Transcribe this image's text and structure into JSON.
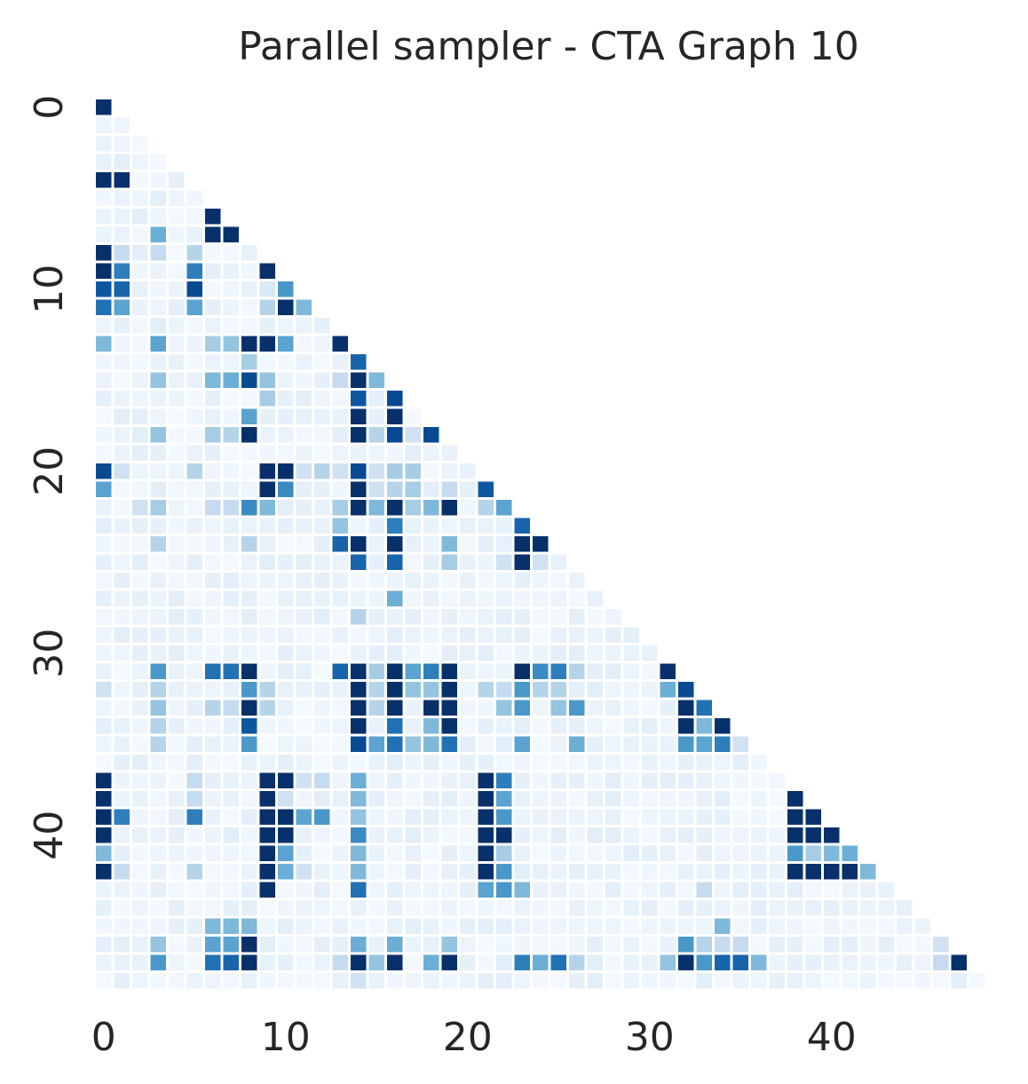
{
  "chart_data": {
    "type": "heatmap",
    "title": "Parallel sampler - CTA Graph 10",
    "xlabel": "",
    "ylabel": "",
    "n": 49,
    "mask": "upper-triangle",
    "colormap": "Blues",
    "value_range": [
      0,
      1
    ],
    "colorbar": false,
    "x_tick_labels": [
      "0",
      "10",
      "20",
      "30",
      "40"
    ],
    "y_tick_labels": [
      "0",
      "10",
      "20",
      "30",
      "40"
    ],
    "cells": [
      [
        0,
        0,
        1.0
      ],
      [
        4,
        0,
        1.0
      ],
      [
        4,
        1,
        1.0
      ],
      [
        6,
        6,
        1.0
      ],
      [
        7,
        3,
        0.5
      ],
      [
        7,
        6,
        1.0
      ],
      [
        7,
        7,
        1.0
      ],
      [
        8,
        0,
        1.0
      ],
      [
        8,
        1,
        0.25
      ],
      [
        8,
        3,
        0.25
      ],
      [
        8,
        5,
        0.3
      ],
      [
        9,
        0,
        1.0
      ],
      [
        9,
        1,
        0.7
      ],
      [
        9,
        5,
        0.7
      ],
      [
        9,
        9,
        1.0
      ],
      [
        10,
        0,
        0.85
      ],
      [
        10,
        1,
        0.8
      ],
      [
        10,
        5,
        0.9
      ],
      [
        10,
        9,
        0.15
      ],
      [
        10,
        10,
        0.6
      ],
      [
        11,
        0,
        0.75
      ],
      [
        11,
        1,
        0.55
      ],
      [
        11,
        5,
        0.55
      ],
      [
        11,
        9,
        0.3
      ],
      [
        11,
        10,
        1.0
      ],
      [
        11,
        11,
        0.45
      ],
      [
        13,
        0,
        0.45
      ],
      [
        13,
        3,
        0.55
      ],
      [
        13,
        6,
        0.35
      ],
      [
        13,
        7,
        0.4
      ],
      [
        13,
        8,
        1.0
      ],
      [
        13,
        9,
        1.0
      ],
      [
        13,
        10,
        0.55
      ],
      [
        13,
        13,
        1.0
      ],
      [
        14,
        8,
        0.35
      ],
      [
        14,
        14,
        0.8
      ],
      [
        15,
        3,
        0.4
      ],
      [
        15,
        6,
        0.45
      ],
      [
        15,
        7,
        0.5
      ],
      [
        15,
        8,
        0.9
      ],
      [
        15,
        9,
        0.4
      ],
      [
        15,
        13,
        0.25
      ],
      [
        15,
        14,
        1.0
      ],
      [
        15,
        15,
        0.45
      ],
      [
        16,
        9,
        0.35
      ],
      [
        16,
        14,
        0.85
      ],
      [
        16,
        16,
        0.9
      ],
      [
        17,
        8,
        0.55
      ],
      [
        17,
        14,
        1.0
      ],
      [
        17,
        16,
        1.0
      ],
      [
        18,
        3,
        0.4
      ],
      [
        18,
        6,
        0.35
      ],
      [
        18,
        7,
        0.3
      ],
      [
        18,
        8,
        1.0
      ],
      [
        18,
        14,
        1.0
      ],
      [
        18,
        15,
        0.3
      ],
      [
        18,
        16,
        0.9
      ],
      [
        18,
        17,
        0.2
      ],
      [
        18,
        18,
        0.9
      ],
      [
        20,
        0,
        0.9
      ],
      [
        20,
        1,
        0.2
      ],
      [
        20,
        5,
        0.3
      ],
      [
        20,
        9,
        1.0
      ],
      [
        20,
        10,
        1.0
      ],
      [
        20,
        11,
        0.2
      ],
      [
        20,
        12,
        0.3
      ],
      [
        20,
        13,
        0.2
      ],
      [
        20,
        14,
        0.9
      ],
      [
        20,
        15,
        0.2
      ],
      [
        20,
        16,
        0.35
      ],
      [
        20,
        17,
        0.35
      ],
      [
        21,
        0,
        0.55
      ],
      [
        21,
        9,
        1.0
      ],
      [
        21,
        10,
        0.65
      ],
      [
        21,
        14,
        1.0
      ],
      [
        21,
        15,
        0.2
      ],
      [
        21,
        16,
        0.3
      ],
      [
        21,
        17,
        0.35
      ],
      [
        21,
        19,
        0.25
      ],
      [
        21,
        21,
        0.85
      ],
      [
        22,
        2,
        0.2
      ],
      [
        22,
        3,
        0.35
      ],
      [
        22,
        6,
        0.25
      ],
      [
        22,
        7,
        0.25
      ],
      [
        22,
        8,
        0.65
      ],
      [
        22,
        9,
        0.45
      ],
      [
        22,
        13,
        0.35
      ],
      [
        22,
        14,
        1.0
      ],
      [
        22,
        15,
        0.45
      ],
      [
        22,
        16,
        1.0
      ],
      [
        22,
        17,
        0.35
      ],
      [
        22,
        18,
        0.45
      ],
      [
        22,
        19,
        1.0
      ],
      [
        22,
        21,
        0.3
      ],
      [
        22,
        22,
        0.55
      ],
      [
        23,
        13,
        0.4
      ],
      [
        23,
        16,
        0.7
      ],
      [
        23,
        23,
        0.8
      ],
      [
        24,
        3,
        0.3
      ],
      [
        24,
        8,
        0.3
      ],
      [
        24,
        13,
        0.8
      ],
      [
        24,
        14,
        1.0
      ],
      [
        24,
        16,
        1.0
      ],
      [
        24,
        19,
        0.45
      ],
      [
        24,
        23,
        1.0
      ],
      [
        24,
        24,
        1.0
      ],
      [
        25,
        14,
        0.8
      ],
      [
        25,
        16,
        0.8
      ],
      [
        25,
        19,
        0.35
      ],
      [
        25,
        22,
        0.2
      ],
      [
        25,
        23,
        1.0
      ],
      [
        25,
        24,
        0.2
      ],
      [
        27,
        16,
        0.5
      ],
      [
        28,
        14,
        0.3
      ],
      [
        31,
        3,
        0.6
      ],
      [
        31,
        6,
        0.75
      ],
      [
        31,
        7,
        0.75
      ],
      [
        31,
        8,
        1.0
      ],
      [
        31,
        13,
        0.8
      ],
      [
        31,
        14,
        1.0
      ],
      [
        31,
        15,
        0.35
      ],
      [
        31,
        16,
        1.0
      ],
      [
        31,
        17,
        0.55
      ],
      [
        31,
        18,
        0.7
      ],
      [
        31,
        19,
        1.0
      ],
      [
        31,
        23,
        1.0
      ],
      [
        31,
        24,
        0.65
      ],
      [
        31,
        25,
        0.7
      ],
      [
        31,
        26,
        0.3
      ],
      [
        31,
        31,
        1.0
      ],
      [
        32,
        0,
        0.2
      ],
      [
        32,
        3,
        0.3
      ],
      [
        32,
        8,
        0.6
      ],
      [
        32,
        9,
        0.3
      ],
      [
        32,
        14,
        1.0
      ],
      [
        32,
        15,
        0.3
      ],
      [
        32,
        16,
        1.0
      ],
      [
        32,
        17,
        0.4
      ],
      [
        32,
        18,
        0.4
      ],
      [
        32,
        19,
        1.0
      ],
      [
        32,
        21,
        0.3
      ],
      [
        32,
        22,
        0.25
      ],
      [
        32,
        23,
        0.6
      ],
      [
        32,
        24,
        0.3
      ],
      [
        32,
        25,
        0.3
      ],
      [
        32,
        31,
        0.5
      ],
      [
        32,
        32,
        0.9
      ],
      [
        33,
        3,
        0.4
      ],
      [
        33,
        6,
        0.3
      ],
      [
        33,
        7,
        0.25
      ],
      [
        33,
        8,
        1.0
      ],
      [
        33,
        9,
        0.3
      ],
      [
        33,
        14,
        1.0
      ],
      [
        33,
        15,
        0.3
      ],
      [
        33,
        16,
        1.0
      ],
      [
        33,
        18,
        1.0
      ],
      [
        33,
        19,
        1.0
      ],
      [
        33,
        22,
        0.4
      ],
      [
        33,
        23,
        0.6
      ],
      [
        33,
        25,
        0.4
      ],
      [
        33,
        26,
        0.6
      ],
      [
        33,
        32,
        1.0
      ],
      [
        33,
        33,
        0.75
      ],
      [
        34,
        3,
        0.3
      ],
      [
        34,
        8,
        0.85
      ],
      [
        34,
        14,
        1.0
      ],
      [
        34,
        16,
        0.75
      ],
      [
        34,
        18,
        0.45
      ],
      [
        34,
        19,
        1.0
      ],
      [
        34,
        32,
        1.0
      ],
      [
        34,
        33,
        0.45
      ],
      [
        34,
        34,
        1.0
      ],
      [
        35,
        3,
        0.3
      ],
      [
        35,
        8,
        0.6
      ],
      [
        35,
        14,
        0.9
      ],
      [
        35,
        15,
        0.55
      ],
      [
        35,
        16,
        0.75
      ],
      [
        35,
        17,
        0.4
      ],
      [
        35,
        18,
        0.45
      ],
      [
        35,
        19,
        0.75
      ],
      [
        35,
        23,
        0.55
      ],
      [
        35,
        26,
        0.5
      ],
      [
        35,
        32,
        0.6
      ],
      [
        35,
        33,
        0.55
      ],
      [
        35,
        34,
        0.7
      ],
      [
        35,
        35,
        0.2
      ],
      [
        37,
        0,
        1.0
      ],
      [
        37,
        5,
        0.25
      ],
      [
        37,
        9,
        1.0
      ],
      [
        37,
        10,
        1.0
      ],
      [
        37,
        11,
        0.2
      ],
      [
        37,
        12,
        0.25
      ],
      [
        37,
        14,
        0.5
      ],
      [
        37,
        21,
        1.0
      ],
      [
        37,
        22,
        0.7
      ],
      [
        38,
        0,
        1.0
      ],
      [
        38,
        5,
        0.25
      ],
      [
        38,
        9,
        1.0
      ],
      [
        38,
        10,
        0.2
      ],
      [
        38,
        14,
        0.45
      ],
      [
        38,
        21,
        1.0
      ],
      [
        38,
        22,
        0.55
      ],
      [
        38,
        38,
        1.0
      ],
      [
        39,
        0,
        1.0
      ],
      [
        39,
        1,
        0.7
      ],
      [
        39,
        5,
        0.7
      ],
      [
        39,
        9,
        1.0
      ],
      [
        39,
        10,
        1.0
      ],
      [
        39,
        11,
        0.55
      ],
      [
        39,
        12,
        0.6
      ],
      [
        39,
        14,
        0.4
      ],
      [
        39,
        21,
        1.0
      ],
      [
        39,
        22,
        0.6
      ],
      [
        39,
        38,
        1.0
      ],
      [
        39,
        39,
        1.0
      ],
      [
        40,
        0,
        1.0
      ],
      [
        40,
        9,
        1.0
      ],
      [
        40,
        10,
        1.0
      ],
      [
        40,
        14,
        0.65
      ],
      [
        40,
        21,
        1.0
      ],
      [
        40,
        22,
        1.0
      ],
      [
        40,
        38,
        1.0
      ],
      [
        40,
        39,
        1.0
      ],
      [
        40,
        40,
        1.0
      ],
      [
        41,
        0,
        0.45
      ],
      [
        41,
        9,
        1.0
      ],
      [
        41,
        10,
        0.55
      ],
      [
        41,
        14,
        0.45
      ],
      [
        41,
        21,
        1.0
      ],
      [
        41,
        22,
        0.35
      ],
      [
        41,
        38,
        0.6
      ],
      [
        41,
        39,
        0.35
      ],
      [
        41,
        40,
        0.45
      ],
      [
        41,
        41,
        0.5
      ],
      [
        42,
        0,
        1.0
      ],
      [
        42,
        1,
        0.25
      ],
      [
        42,
        5,
        0.3
      ],
      [
        42,
        9,
        1.0
      ],
      [
        42,
        10,
        0.5
      ],
      [
        42,
        11,
        0.2
      ],
      [
        42,
        14,
        0.45
      ],
      [
        42,
        21,
        1.0
      ],
      [
        42,
        22,
        0.6
      ],
      [
        42,
        38,
        1.0
      ],
      [
        42,
        39,
        1.0
      ],
      [
        42,
        40,
        1.0
      ],
      [
        42,
        41,
        1.0
      ],
      [
        42,
        42,
        0.45
      ],
      [
        43,
        9,
        1.0
      ],
      [
        43,
        14,
        0.75
      ],
      [
        43,
        21,
        0.55
      ],
      [
        43,
        22,
        0.6
      ],
      [
        43,
        23,
        0.45
      ],
      [
        43,
        33,
        0.25
      ],
      [
        45,
        6,
        0.45
      ],
      [
        45,
        7,
        0.45
      ],
      [
        45,
        8,
        0.45
      ],
      [
        45,
        34,
        0.45
      ],
      [
        46,
        3,
        0.4
      ],
      [
        46,
        6,
        0.55
      ],
      [
        46,
        7,
        0.55
      ],
      [
        46,
        8,
        1.0
      ],
      [
        46,
        14,
        0.5
      ],
      [
        46,
        16,
        0.5
      ],
      [
        46,
        19,
        0.4
      ],
      [
        46,
        32,
        0.6
      ],
      [
        46,
        33,
        0.3
      ],
      [
        46,
        34,
        0.25
      ],
      [
        46,
        35,
        0.25
      ],
      [
        46,
        46,
        0.2
      ],
      [
        47,
        3,
        0.6
      ],
      [
        47,
        6,
        0.75
      ],
      [
        47,
        7,
        0.8
      ],
      [
        47,
        8,
        1.0
      ],
      [
        47,
        13,
        0.25
      ],
      [
        47,
        14,
        1.0
      ],
      [
        47,
        15,
        0.4
      ],
      [
        47,
        16,
        1.0
      ],
      [
        47,
        18,
        0.5
      ],
      [
        47,
        19,
        1.0
      ],
      [
        47,
        23,
        0.7
      ],
      [
        47,
        24,
        0.5
      ],
      [
        47,
        25,
        0.75
      ],
      [
        47,
        26,
        0.3
      ],
      [
        47,
        31,
        0.4
      ],
      [
        47,
        32,
        1.0
      ],
      [
        47,
        33,
        0.6
      ],
      [
        47,
        34,
        0.8
      ],
      [
        47,
        35,
        0.8
      ],
      [
        47,
        36,
        0.45
      ],
      [
        47,
        46,
        0.25
      ],
      [
        47,
        47,
        1.0
      ],
      [
        48,
        14,
        0.2
      ]
    ]
  }
}
